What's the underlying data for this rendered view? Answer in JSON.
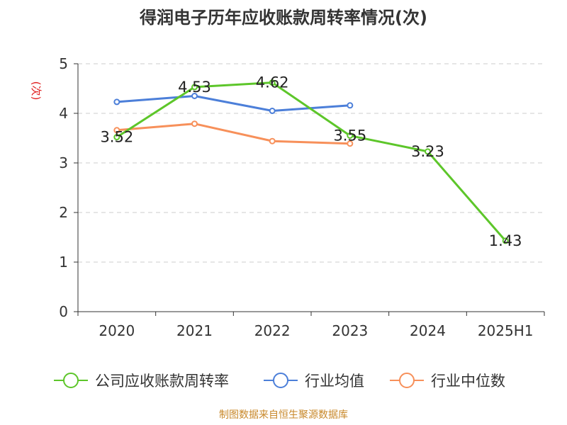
{
  "chart_data": {
    "type": "line",
    "title": "得润电子历年应收账款周转率情况(次)",
    "ylabel": "(次)",
    "xlabel": "",
    "categories": [
      "2020",
      "2021",
      "2022",
      "2023",
      "2024",
      "2025H1"
    ],
    "ylim": [
      0,
      5
    ],
    "yticks": [
      0,
      1,
      2,
      3,
      4,
      5
    ],
    "grid": true,
    "legend_position": "bottom",
    "series": [
      {
        "name": "公司应收账款周转率",
        "color": "#5dc62a",
        "values": [
          3.52,
          4.53,
          4.62,
          3.55,
          3.23,
          1.43
        ],
        "labels": [
          "3.52",
          "4.53",
          "4.62",
          "3.55",
          "3.23",
          "1.43"
        ]
      },
      {
        "name": "行业均值",
        "color": "#4c7fd9",
        "values": [
          4.23,
          4.35,
          4.05,
          4.16,
          null,
          null
        ]
      },
      {
        "name": "行业中位数",
        "color": "#f7905a",
        "values": [
          3.66,
          3.79,
          3.44,
          3.39,
          null,
          null
        ]
      }
    ]
  },
  "source": "制图数据来自恒生聚源数据库",
  "colors": {
    "title": "#333333",
    "ylabel": "#e02020",
    "axis": "#333333",
    "grid": "#cccccc",
    "source": "#c8882a"
  }
}
